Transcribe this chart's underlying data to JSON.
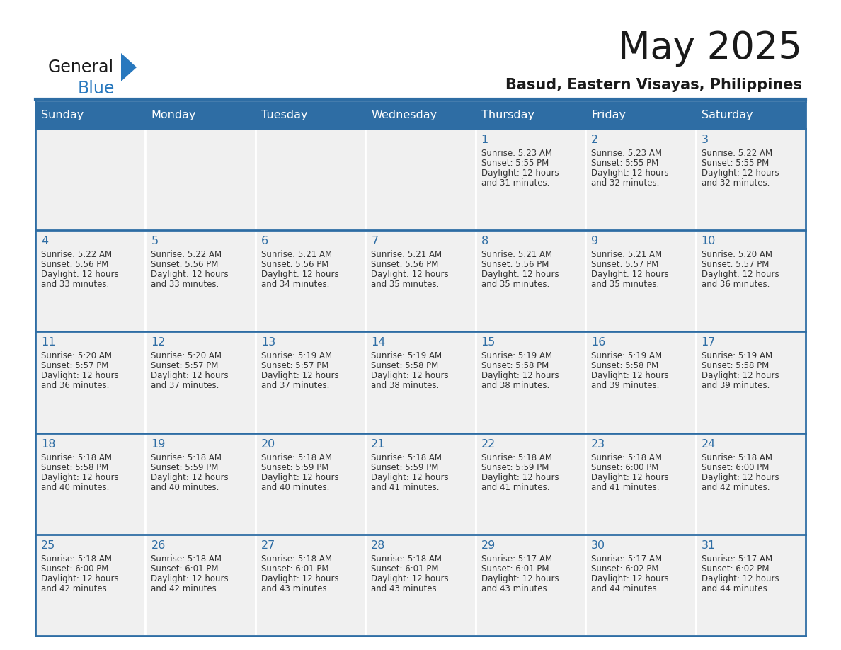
{
  "title": "May 2025",
  "subtitle": "Basud, Eastern Visayas, Philippines",
  "days_of_week": [
    "Sunday",
    "Monday",
    "Tuesday",
    "Wednesday",
    "Thursday",
    "Friday",
    "Saturday"
  ],
  "header_bg_color": "#2E6DA4",
  "header_text_color": "#FFFFFF",
  "cell_bg_color": "#F0F0F0",
  "day_number_color": "#2E6DA4",
  "text_color": "#333333",
  "border_color": "#2E6DA4",
  "logo_black_color": "#1a1a1a",
  "logo_blue_color": "#2878BE",
  "calendar_data": [
    [
      null,
      null,
      null,
      null,
      {
        "day": 1,
        "sunrise": "5:23 AM",
        "sunset": "5:55 PM",
        "daylight": "12 hours",
        "daylight2": "and 31 minutes."
      },
      {
        "day": 2,
        "sunrise": "5:23 AM",
        "sunset": "5:55 PM",
        "daylight": "12 hours",
        "daylight2": "and 32 minutes."
      },
      {
        "day": 3,
        "sunrise": "5:22 AM",
        "sunset": "5:55 PM",
        "daylight": "12 hours",
        "daylight2": "and 32 minutes."
      }
    ],
    [
      {
        "day": 4,
        "sunrise": "5:22 AM",
        "sunset": "5:56 PM",
        "daylight": "12 hours",
        "daylight2": "and 33 minutes."
      },
      {
        "day": 5,
        "sunrise": "5:22 AM",
        "sunset": "5:56 PM",
        "daylight": "12 hours",
        "daylight2": "and 33 minutes."
      },
      {
        "day": 6,
        "sunrise": "5:21 AM",
        "sunset": "5:56 PM",
        "daylight": "12 hours",
        "daylight2": "and 34 minutes."
      },
      {
        "day": 7,
        "sunrise": "5:21 AM",
        "sunset": "5:56 PM",
        "daylight": "12 hours",
        "daylight2": "and 35 minutes."
      },
      {
        "day": 8,
        "sunrise": "5:21 AM",
        "sunset": "5:56 PM",
        "daylight": "12 hours",
        "daylight2": "and 35 minutes."
      },
      {
        "day": 9,
        "sunrise": "5:21 AM",
        "sunset": "5:57 PM",
        "daylight": "12 hours",
        "daylight2": "and 35 minutes."
      },
      {
        "day": 10,
        "sunrise": "5:20 AM",
        "sunset": "5:57 PM",
        "daylight": "12 hours",
        "daylight2": "and 36 minutes."
      }
    ],
    [
      {
        "day": 11,
        "sunrise": "5:20 AM",
        "sunset": "5:57 PM",
        "daylight": "12 hours",
        "daylight2": "and 36 minutes."
      },
      {
        "day": 12,
        "sunrise": "5:20 AM",
        "sunset": "5:57 PM",
        "daylight": "12 hours",
        "daylight2": "and 37 minutes."
      },
      {
        "day": 13,
        "sunrise": "5:19 AM",
        "sunset": "5:57 PM",
        "daylight": "12 hours",
        "daylight2": "and 37 minutes."
      },
      {
        "day": 14,
        "sunrise": "5:19 AM",
        "sunset": "5:58 PM",
        "daylight": "12 hours",
        "daylight2": "and 38 minutes."
      },
      {
        "day": 15,
        "sunrise": "5:19 AM",
        "sunset": "5:58 PM",
        "daylight": "12 hours",
        "daylight2": "and 38 minutes."
      },
      {
        "day": 16,
        "sunrise": "5:19 AM",
        "sunset": "5:58 PM",
        "daylight": "12 hours",
        "daylight2": "and 39 minutes."
      },
      {
        "day": 17,
        "sunrise": "5:19 AM",
        "sunset": "5:58 PM",
        "daylight": "12 hours",
        "daylight2": "and 39 minutes."
      }
    ],
    [
      {
        "day": 18,
        "sunrise": "5:18 AM",
        "sunset": "5:58 PM",
        "daylight": "12 hours",
        "daylight2": "and 40 minutes."
      },
      {
        "day": 19,
        "sunrise": "5:18 AM",
        "sunset": "5:59 PM",
        "daylight": "12 hours",
        "daylight2": "and 40 minutes."
      },
      {
        "day": 20,
        "sunrise": "5:18 AM",
        "sunset": "5:59 PM",
        "daylight": "12 hours",
        "daylight2": "and 40 minutes."
      },
      {
        "day": 21,
        "sunrise": "5:18 AM",
        "sunset": "5:59 PM",
        "daylight": "12 hours",
        "daylight2": "and 41 minutes."
      },
      {
        "day": 22,
        "sunrise": "5:18 AM",
        "sunset": "5:59 PM",
        "daylight": "12 hours",
        "daylight2": "and 41 minutes."
      },
      {
        "day": 23,
        "sunrise": "5:18 AM",
        "sunset": "6:00 PM",
        "daylight": "12 hours",
        "daylight2": "and 41 minutes."
      },
      {
        "day": 24,
        "sunrise": "5:18 AM",
        "sunset": "6:00 PM",
        "daylight": "12 hours",
        "daylight2": "and 42 minutes."
      }
    ],
    [
      {
        "day": 25,
        "sunrise": "5:18 AM",
        "sunset": "6:00 PM",
        "daylight": "12 hours",
        "daylight2": "and 42 minutes."
      },
      {
        "day": 26,
        "sunrise": "5:18 AM",
        "sunset": "6:01 PM",
        "daylight": "12 hours",
        "daylight2": "and 42 minutes."
      },
      {
        "day": 27,
        "sunrise": "5:18 AM",
        "sunset": "6:01 PM",
        "daylight": "12 hours",
        "daylight2": "and 43 minutes."
      },
      {
        "day": 28,
        "sunrise": "5:18 AM",
        "sunset": "6:01 PM",
        "daylight": "12 hours",
        "daylight2": "and 43 minutes."
      },
      {
        "day": 29,
        "sunrise": "5:17 AM",
        "sunset": "6:01 PM",
        "daylight": "12 hours",
        "daylight2": "and 43 minutes."
      },
      {
        "day": 30,
        "sunrise": "5:17 AM",
        "sunset": "6:02 PM",
        "daylight": "12 hours",
        "daylight2": "and 44 minutes."
      },
      {
        "day": 31,
        "sunrise": "5:17 AM",
        "sunset": "6:02 PM",
        "daylight": "12 hours",
        "daylight2": "and 44 minutes."
      }
    ]
  ]
}
